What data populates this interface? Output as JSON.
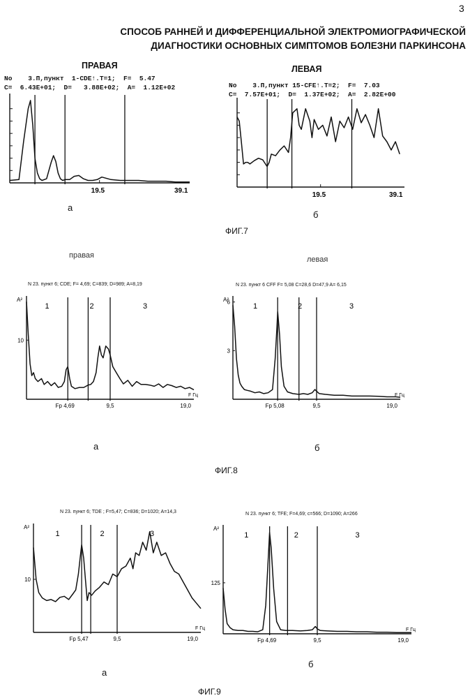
{
  "page_number": "3",
  "title_line1": "СПОСОБ РАННЕЙ И ДИФФЕРЕНЦИАЛЬНОЙ  ЭЛЕКТРОМИОГРАФИЧЕСКОЙ",
  "title_line2": "ДИАГНОСТИКИ ОСНОВНЫХ СИМПТОМОВ БОЛЕЗНИ ПАРКИНСОНА",
  "fig7": {
    "caption": "ФИГ.7",
    "left": {
      "heading": "ПРАВАЯ",
      "info1": "No    3.П,пункт  1-CDE↑.T=1;  F=  5.47",
      "info2": "C=  6.43E+01;  D=   3.88E+02;  A=  1.12E+02",
      "tick_mid": "19.5",
      "tick_end": "39.1",
      "sublabel": "а"
    },
    "right": {
      "heading": "ЛЕВАЯ",
      "info1": "No    3.П,пункт 15-CFE↑.T=2;  F=  7.03",
      "info2": "C=  7.57E+01;  D=  1.37E+02;  A=  2.82E+00",
      "tick_mid": "19.5",
      "tick_end": "39.1",
      "sublabel": "б"
    }
  },
  "fig8": {
    "caption": "ФИГ.8",
    "left": {
      "side_label": "правая",
      "header": "N 23.  пункт 6;  CDE;  F= 4,69;  C=839;  D=989;  A=8,19",
      "y_axis": "A²",
      "y_tick": "10",
      "zones": [
        "1",
        "2",
        "3"
      ],
      "fp_label": "Fp 4,69",
      "tick_mid": "9,5",
      "tick_end": "19,0",
      "x_axis": "F Гц",
      "sublabel": "а"
    },
    "right": {
      "side_label": "левая",
      "header": "N 23.  пункт 6   CFF  F= 5,08  C=28,6  D=47,9  A= 6,15",
      "y_axis": "A²",
      "y_tick_top": "6",
      "y_tick_mid": "3",
      "zones": [
        "1",
        "2",
        "3"
      ],
      "fp_label": "Fp 5,08",
      "tick_mid": "9,5",
      "tick_end": "19,0",
      "x_axis": "F Гц",
      "sublabel": "б"
    }
  },
  "fig9": {
    "caption": "ФИГ.9",
    "left": {
      "header": "N 23.  пункт 6;  TDE ;  F=5,47;  C=836;  D=1020;  A=14,3",
      "y_axis": "A²",
      "y_tick": "10",
      "zones": [
        "1",
        "2",
        "3"
      ],
      "fp_label": "Fp 5,47",
      "tick_mid": "9,5",
      "tick_end": "19,0",
      "x_axis": "F Гц",
      "sublabel": "а"
    },
    "right": {
      "header": "N 23.  пункт 6;  TFE;  F=4,69;  c=566;  D=1090;  A=266",
      "y_axis": "A²",
      "y_tick": "125",
      "zones": [
        "1",
        "2",
        "3"
      ],
      "fp_label": "Fp  4,69",
      "tick_mid": "9,5",
      "tick_end": "19,0",
      "x_axis": "F Гц",
      "sublabel": "б"
    }
  },
  "chart_data": [
    {
      "type": "line",
      "figure": "ФИГ.7а",
      "title": "ПРАВАЯ",
      "xlim": [
        0,
        39.1
      ],
      "xticks": [
        19.5,
        39.1
      ],
      "markers_x": [
        5.47,
        12.0,
        25.0
      ],
      "x": [
        0,
        2,
        3,
        4,
        4.5,
        5,
        5.47,
        6,
        6.5,
        7,
        8,
        9,
        9.5,
        10,
        10.5,
        11,
        11.5,
        12,
        13,
        14,
        15,
        16,
        17,
        18,
        19,
        20,
        22,
        24,
        26,
        28,
        30,
        32,
        34,
        36,
        39.1
      ],
      "y": [
        0.03,
        0.04,
        0.5,
        0.9,
        1.0,
        0.7,
        0.3,
        0.12,
        0.05,
        0.03,
        0.05,
        0.25,
        0.33,
        0.26,
        0.12,
        0.05,
        0.03,
        0.04,
        0.04,
        0.08,
        0.09,
        0.05,
        0.03,
        0.03,
        0.04,
        0.07,
        0.04,
        0.03,
        0.03,
        0.03,
        0.02,
        0.02,
        0.02,
        0.01,
        0.01
      ]
    },
    {
      "type": "line",
      "figure": "ФИГ.7б",
      "title": "ЛЕВАЯ",
      "xlim": [
        0,
        39.1
      ],
      "xticks": [
        19.5,
        39.1
      ],
      "markers_x": [
        7.03,
        12.8,
        26.8
      ],
      "x": [
        0,
        0.5,
        1,
        1.5,
        2,
        2.5,
        3,
        4,
        5,
        6,
        7,
        7.5,
        8,
        9,
        10,
        11,
        12,
        12.5,
        13,
        14,
        14.5,
        15,
        16,
        17,
        17.5,
        18,
        19,
        20,
        21,
        22,
        23,
        24,
        25,
        26,
        27,
        28,
        29,
        30,
        31,
        32,
        33,
        34,
        35,
        36,
        37,
        38
      ],
      "y": [
        0.85,
        0.8,
        0.55,
        0.28,
        0.3,
        0.3,
        0.28,
        0.32,
        0.35,
        0.33,
        0.25,
        0.3,
        0.4,
        0.38,
        0.45,
        0.5,
        0.42,
        0.6,
        0.9,
        0.95,
        0.75,
        0.7,
        0.95,
        0.8,
        0.6,
        0.82,
        0.7,
        0.75,
        0.62,
        0.85,
        0.55,
        0.8,
        0.72,
        0.85,
        0.7,
        0.95,
        0.78,
        0.88,
        0.75,
        0.6,
        0.95,
        0.62,
        0.55,
        0.45,
        0.55,
        0.4
      ]
    },
    {
      "type": "line",
      "figure": "ФИГ.8а",
      "xlim": [
        0,
        19.0
      ],
      "xticks": [
        4.69,
        9.5,
        19.0
      ],
      "ylabel": "A²",
      "markers_x": [
        4.69,
        7.0,
        9.5
      ],
      "zones": [
        "1",
        "2",
        "3"
      ],
      "x": [
        0,
        0.2,
        0.4,
        0.6,
        0.8,
        1,
        1.3,
        1.7,
        2,
        2.4,
        2.8,
        3.2,
        3.6,
        4,
        4.3,
        4.5,
        4.69,
        4.9,
        5.1,
        5.5,
        6,
        6.5,
        7,
        7.3,
        7.6,
        7.9,
        8.1,
        8.3,
        8.5,
        8.7,
        9,
        9.3,
        9.5,
        9.8,
        10.2,
        10.6,
        11,
        11.5,
        12,
        12.5,
        13,
        13.5,
        14,
        14.5,
        15,
        15.5,
        16,
        16.5,
        17,
        17.5,
        18,
        18.5,
        19
      ],
      "y": [
        16.5,
        11,
        6,
        4,
        4.5,
        3.5,
        3,
        3.5,
        2.5,
        3,
        2.3,
        2.8,
        2,
        2.2,
        3,
        5,
        5.5,
        3.5,
        2.2,
        1.8,
        2,
        2,
        2.4,
        2.5,
        3,
        4.5,
        7,
        9,
        7.5,
        7,
        9,
        8.5,
        7.5,
        5.5,
        4.5,
        3.5,
        2.6,
        3.2,
        2.2,
        3,
        2.5,
        2.5,
        2.4,
        2.2,
        2.6,
        2,
        2.5,
        2.3,
        2,
        2.2,
        1.8,
        2,
        1.6
      ]
    },
    {
      "type": "line",
      "figure": "ФИГ.8б",
      "xlim": [
        0,
        19.0
      ],
      "xticks": [
        5.08,
        9.5,
        19.0
      ],
      "ylabel": "A²",
      "markers_x": [
        5.08,
        7.5,
        9.5
      ],
      "zones": [
        "1",
        "2",
        "3"
      ],
      "x": [
        0,
        0.2,
        0.4,
        0.6,
        0.8,
        1,
        1.3,
        1.6,
        2,
        2.5,
        3,
        3.5,
        4,
        4.5,
        4.8,
        5.0,
        5.08,
        5.3,
        5.5,
        5.8,
        6.2,
        6.8,
        7.5,
        8,
        8.5,
        9,
        9.3,
        9.5,
        9.8,
        10.5,
        11.5,
        12.5,
        13.5,
        14.5,
        15.5,
        16.5,
        17.5,
        18.5,
        19
      ],
      "y": [
        5.8,
        4.5,
        2.5,
        1.5,
        1,
        0.8,
        0.6,
        0.55,
        0.5,
        0.4,
        0.45,
        0.35,
        0.4,
        0.6,
        2.5,
        4.5,
        5.4,
        4,
        2,
        0.8,
        0.45,
        0.35,
        0.3,
        0.35,
        0.3,
        0.4,
        0.6,
        0.5,
        0.35,
        0.3,
        0.25,
        0.25,
        0.2,
        0.2,
        0.2,
        0.18,
        0.15,
        0.15,
        0.12
      ]
    },
    {
      "type": "line",
      "figure": "ФИГ.9а",
      "xlim": [
        0,
        19.0
      ],
      "xticks": [
        5.47,
        9.5,
        19.0
      ],
      "ylabel": "A²",
      "markers_x": [
        5.47,
        6.5,
        9.5
      ],
      "zones": [
        "1",
        "2",
        "3"
      ],
      "x": [
        0,
        0.3,
        0.6,
        1,
        1.5,
        2,
        2.5,
        3,
        3.5,
        4,
        4.5,
        4.8,
        5.1,
        5.3,
        5.47,
        5.7,
        5.9,
        6.1,
        6.3,
        6.6,
        7,
        7.5,
        8,
        8.5,
        9,
        9.5,
        10,
        10.5,
        11,
        11.3,
        11.6,
        12,
        12.4,
        12.8,
        13.2,
        13.6,
        14,
        14.5,
        15,
        15.5,
        16,
        16.5,
        17,
        17.5,
        18,
        18.5,
        19
      ],
      "y": [
        16,
        10,
        7.5,
        6.5,
        6,
        6.2,
        5.8,
        6.6,
        6.8,
        6.2,
        7.3,
        8,
        11,
        14,
        16.5,
        14,
        10,
        6,
        7.5,
        7,
        7.8,
        8.5,
        9.5,
        9,
        11,
        10.5,
        12,
        12.5,
        14,
        12,
        15,
        14.5,
        17,
        15.5,
        19,
        15,
        17,
        14.5,
        15,
        13,
        11.5,
        11,
        9.5,
        8,
        6.5,
        5.5,
        4.5
      ]
    },
    {
      "type": "line",
      "figure": "ФИГ.9б",
      "xlim": [
        0,
        19.0
      ],
      "xticks": [
        4.69,
        9.5,
        19.0
      ],
      "ylabel": "A²",
      "markers_x": [
        4.69,
        6.5,
        9.5
      ],
      "zones": [
        "1",
        "2",
        "3"
      ],
      "x": [
        0,
        0.2,
        0.4,
        0.7,
        1,
        1.5,
        2,
        2.5,
        3,
        3.5,
        4,
        4.3,
        4.5,
        4.69,
        4.85,
        5.1,
        5.4,
        5.8,
        6.3,
        7,
        7.8,
        8.5,
        9,
        9.3,
        9.5,
        9.8,
        10.5,
        11.5,
        12.5,
        13.5,
        14.5,
        15.5,
        16.5,
        17.5,
        18.5,
        19
      ],
      "y": [
        112,
        60,
        25,
        15,
        10,
        8,
        8,
        6,
        6,
        5,
        10,
        70,
        160,
        248,
        210,
        110,
        30,
        10,
        8,
        8,
        7,
        8,
        10,
        18,
        12,
        8,
        7,
        6,
        6,
        5,
        5,
        4,
        4,
        3,
        3,
        3
      ]
    }
  ]
}
